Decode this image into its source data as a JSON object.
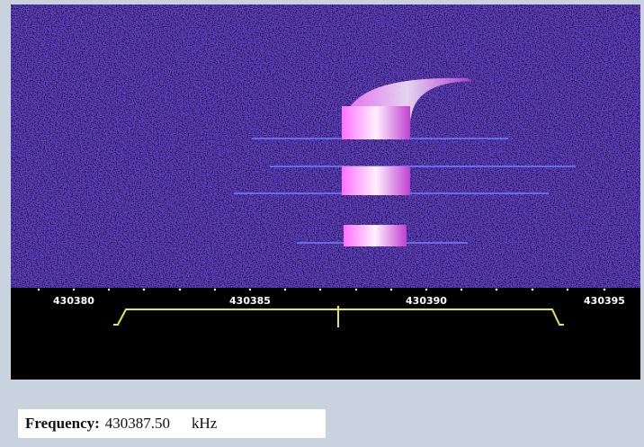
{
  "scale": {
    "labels": [
      "430380",
      "430385",
      "430390",
      "430395"
    ]
  },
  "frequency": {
    "label": "Frequency:",
    "value": "430387.50",
    "unit": "kHz"
  }
}
